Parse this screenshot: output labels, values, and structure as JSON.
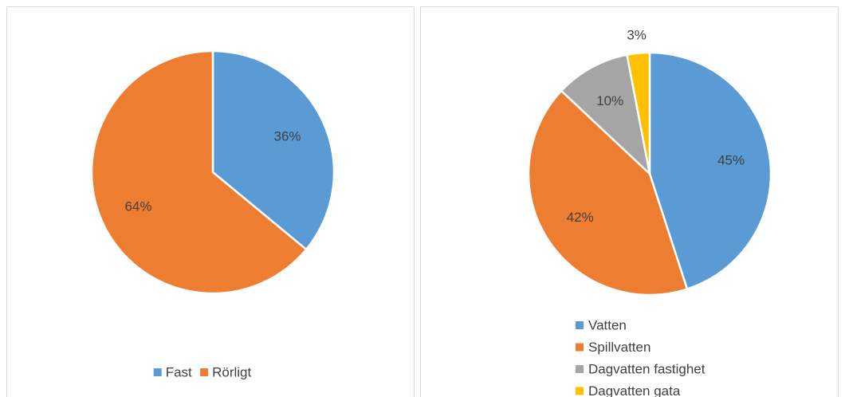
{
  "chart_data": [
    {
      "type": "pie",
      "categories": [
        "Fast",
        "Rörligt"
      ],
      "values": [
        36,
        64
      ],
      "value_labels": [
        "36%",
        "64%"
      ],
      "colors": [
        "#5b9bd5",
        "#ed7d31"
      ],
      "legend": "bottom"
    },
    {
      "type": "pie",
      "categories": [
        "Vatten",
        "Spillvatten",
        "Dagvatten fastighet",
        "Dagvatten gata"
      ],
      "values": [
        45,
        42,
        10,
        3
      ],
      "value_labels": [
        "45%",
        "42%",
        "10%",
        "3%"
      ],
      "colors": [
        "#5b9bd5",
        "#ed7d31",
        "#a5a5a5",
        "#ffc000"
      ],
      "legend": "bottom"
    }
  ]
}
